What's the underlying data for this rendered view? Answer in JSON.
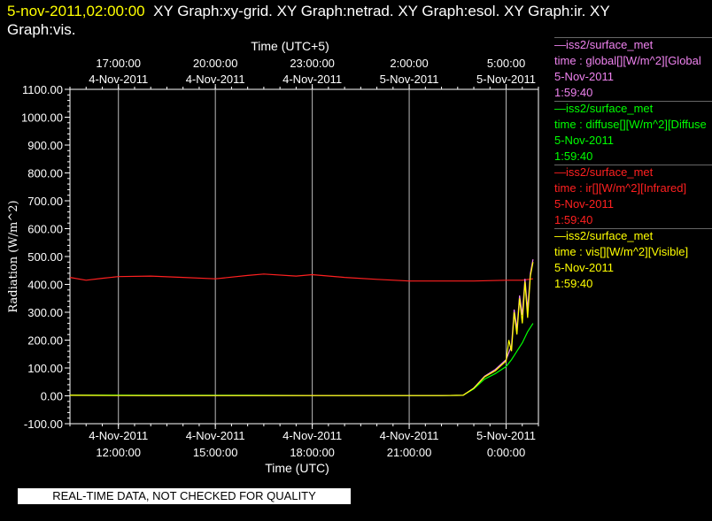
{
  "header": {
    "timestamp": "5-nov-2011,02:00:00",
    "graphs_line1": "XY Graph:xy-grid.  XY Graph:netrad.  XY Graph:esol.  XY Graph:ir.  XY",
    "graphs_line2": "Graph:vis."
  },
  "legend": [
    {
      "source": "—iss2/surface_met",
      "desc": "time : global[][W/m^2][Global",
      "date": "5-Nov-2011",
      "time": "1:59:40",
      "color": "#ee82ee"
    },
    {
      "source": "—iss2/surface_met",
      "desc": "time : diffuse[][W/m^2][Diffuse",
      "date": "5-Nov-2011",
      "time": "1:59:40",
      "color": "#00ff00"
    },
    {
      "source": "—iss2/surface_met",
      "desc": "time : ir[][W/m^2][Infrared]",
      "date": "5-Nov-2011",
      "time": "1:59:40",
      "color": "#ff2020"
    },
    {
      "source": "—iss2/surface_met",
      "desc": "time : vis[][W/m^2][Visible]",
      "date": "5-Nov-2011",
      "time": "1:59:40",
      "color": "#ffff00"
    }
  ],
  "notice": "REAL-TIME DATA, NOT CHECKED FOR QUALITY",
  "chart_data": {
    "type": "line",
    "xlabel": "Time (UTC)",
    "x2label": "Time (UTC+5)",
    "ylabel": "Radiation (W/m^2)",
    "xlim": [
      "2011-11-04 10:30",
      "2011-11-05 01:00"
    ],
    "ylim": [
      -100,
      1100
    ],
    "yticks": [
      "-100.00",
      "0.00",
      "100.00",
      "200.00",
      "300.00",
      "400.00",
      "500.00",
      "600.00",
      "700.00",
      "800.00",
      "900.00",
      "1000.00",
      "1100.00"
    ],
    "xticks": [
      {
        "date": "4-Nov-2011",
        "time": "12:00:00",
        "x": "2011-11-04 12:00"
      },
      {
        "date": "4-Nov-2011",
        "time": "15:00:00",
        "x": "2011-11-04 15:00"
      },
      {
        "date": "4-Nov-2011",
        "time": "18:00:00",
        "x": "2011-11-04 18:00"
      },
      {
        "date": "4-Nov-2011",
        "time": "21:00:00",
        "x": "2011-11-04 21:00"
      },
      {
        "date": "5-Nov-2011",
        "time": "0:00:00",
        "x": "2011-11-05 00:00"
      }
    ],
    "x2ticks": [
      {
        "time": "17:00:00",
        "date": "4-Nov-2011",
        "x": "2011-11-04 12:00"
      },
      {
        "time": "20:00:00",
        "date": "4-Nov-2011",
        "x": "2011-11-04 15:00"
      },
      {
        "time": "23:00:00",
        "date": "4-Nov-2011",
        "x": "2011-11-04 18:00"
      },
      {
        "time": "2:00:00",
        "date": "5-Nov-2011",
        "x": "2011-11-04 21:00"
      },
      {
        "time": "5:00:00",
        "date": "5-Nov-2011",
        "x": "2011-11-05 00:00"
      }
    ],
    "grid": true,
    "series": [
      {
        "name": "ir",
        "color": "#ff2020",
        "x": [
          "2011-11-04 10:30",
          "2011-11-04 11:00",
          "2011-11-04 11:30",
          "2011-11-04 12:00",
          "2011-11-04 13:00",
          "2011-11-04 14:00",
          "2011-11-04 15:00",
          "2011-11-04 16:00",
          "2011-11-04 16:30",
          "2011-11-04 17:30",
          "2011-11-04 18:00",
          "2011-11-04 19:00",
          "2011-11-04 20:00",
          "2011-11-04 21:00",
          "2011-11-04 22:00",
          "2011-11-04 23:00",
          "2011-11-05 00:00",
          "2011-11-05 00:30",
          "2011-11-05 00:50"
        ],
        "y": [
          425,
          415,
          422,
          428,
          430,
          425,
          420,
          432,
          437,
          430,
          435,
          425,
          418,
          412,
          412,
          412,
          415,
          415,
          420
        ]
      },
      {
        "name": "diffuse",
        "color": "#00ff00",
        "x": [
          "2011-11-04 10:30",
          "2011-11-04 13:00",
          "2011-11-04 16:00",
          "2011-11-04 19:00",
          "2011-11-04 22:00",
          "2011-11-04 22:40",
          "2011-11-04 23:00",
          "2011-11-04 23:20",
          "2011-11-04 23:40",
          "2011-11-05 00:00",
          "2011-11-05 00:10",
          "2011-11-05 00:20",
          "2011-11-05 00:30",
          "2011-11-05 00:40",
          "2011-11-05 00:50"
        ],
        "y": [
          3,
          2,
          2,
          1,
          1,
          2,
          25,
          60,
          80,
          105,
          130,
          160,
          190,
          230,
          260
        ]
      },
      {
        "name": "global",
        "color": "#ee82ee",
        "x": [
          "2011-11-04 10:30",
          "2011-11-04 13:00",
          "2011-11-04 16:00",
          "2011-11-04 19:00",
          "2011-11-04 22:00",
          "2011-11-04 22:40",
          "2011-11-04 23:00",
          "2011-11-04 23:20",
          "2011-11-04 23:40",
          "2011-11-05 00:00",
          "2011-11-05 00:10",
          "2011-11-05 00:15",
          "2011-11-05 00:20",
          "2011-11-05 00:25",
          "2011-11-05 00:30",
          "2011-11-05 00:35",
          "2011-11-05 00:40",
          "2011-11-05 00:45",
          "2011-11-05 00:50"
        ],
        "y": [
          2,
          1,
          1,
          1,
          1,
          2,
          28,
          70,
          95,
          130,
          180,
          310,
          240,
          360,
          290,
          420,
          310,
          440,
          490
        ]
      },
      {
        "name": "vis",
        "color": "#ffff00",
        "x": [
          "2011-11-04 10:30",
          "2011-11-04 13:00",
          "2011-11-04 16:00",
          "2011-11-04 19:00",
          "2011-11-04 22:00",
          "2011-11-04 22:40",
          "2011-11-04 23:00",
          "2011-11-04 23:20",
          "2011-11-04 23:40",
          "2011-11-05 00:00",
          "2011-11-05 00:05",
          "2011-11-05 00:10",
          "2011-11-05 00:15",
          "2011-11-05 00:20",
          "2011-11-05 00:25",
          "2011-11-05 00:30",
          "2011-11-05 00:35",
          "2011-11-05 00:40",
          "2011-11-05 00:45",
          "2011-11-05 00:50"
        ],
        "y": [
          2,
          1,
          1,
          1,
          1,
          2,
          27,
          68,
          90,
          125,
          200,
          160,
          300,
          220,
          350,
          260,
          410,
          280,
          430,
          480
        ]
      }
    ]
  }
}
